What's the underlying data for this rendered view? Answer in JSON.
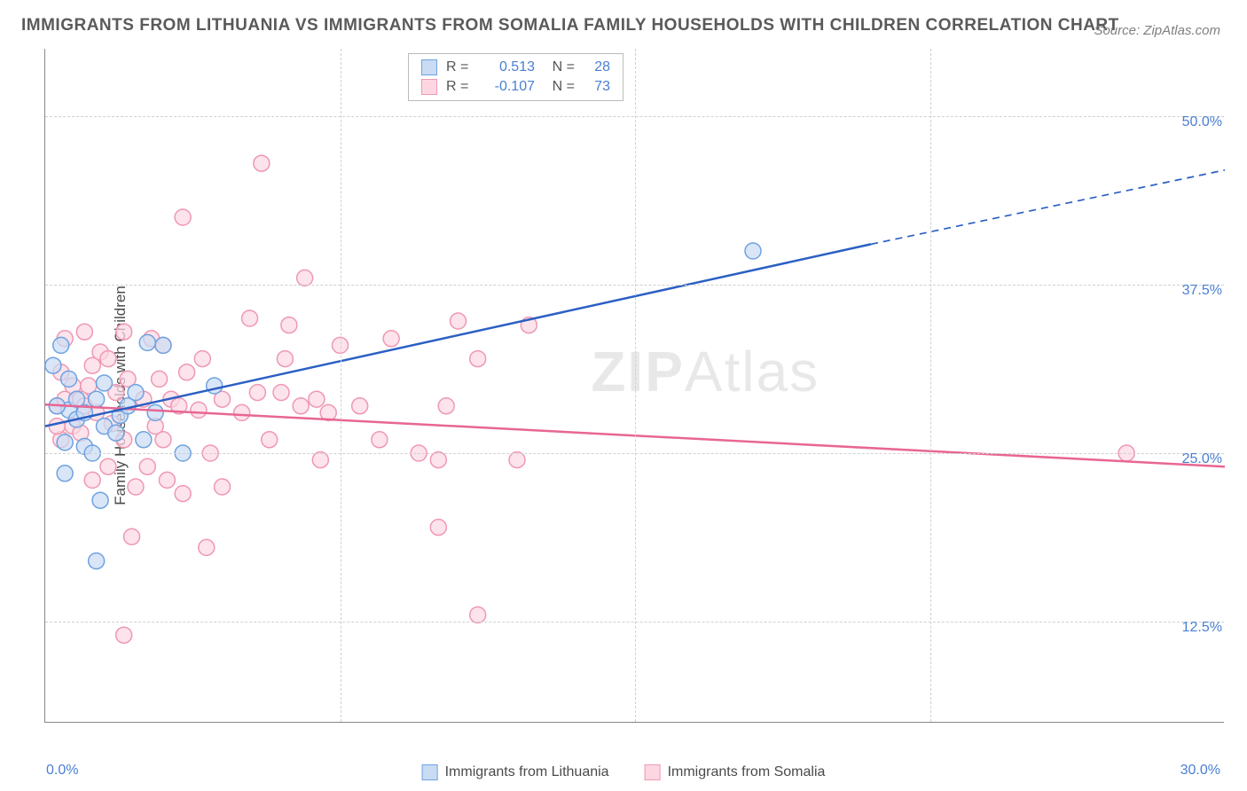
{
  "title": "IMMIGRANTS FROM LITHUANIA VS IMMIGRANTS FROM SOMALIA FAMILY HOUSEHOLDS WITH CHILDREN CORRELATION CHART",
  "source": "Source: ZipAtlas.com",
  "y_axis_title": "Family Households with Children",
  "watermark_bold": "ZIP",
  "watermark_rest": "Atlas",
  "chart": {
    "type": "scatter",
    "xlim": [
      0,
      30
    ],
    "ylim": [
      5,
      55
    ],
    "x_tick_labels": [
      "0.0%",
      "30.0%"
    ],
    "y_ticks": [
      12.5,
      25.0,
      37.5,
      50.0
    ],
    "y_tick_labels": [
      "12.5%",
      "25.0%",
      "37.5%",
      "50.0%"
    ],
    "v_grid_at_x": [
      7.5,
      15,
      22.5
    ],
    "background_color": "#ffffff",
    "grid_color": "#d0d0d0",
    "axis_color": "#888888",
    "tick_color": "#4a7fd4",
    "marker_radius": 9,
    "marker_stroke_width": 1.5,
    "line_width": 2.5,
    "series": [
      {
        "name": "Immigrants from Lithuania",
        "fill": "#c9dcf3",
        "stroke": "#6fa2e0",
        "line_color": "#2b5fc4",
        "r_value": "0.513",
        "n_value": "28",
        "trend": {
          "x1": 0,
          "y1": 27,
          "x2_solid": 21,
          "y2_solid": 40.5,
          "x2_dash": 30,
          "y2_dash": 46
        },
        "points": [
          [
            0.2,
            31.5
          ],
          [
            0.6,
            28.2
          ],
          [
            0.8,
            27.5
          ],
          [
            0.4,
            33.0
          ],
          [
            1.0,
            25.5
          ],
          [
            1.2,
            25.0
          ],
          [
            1.3,
            29.0
          ],
          [
            0.5,
            23.5
          ],
          [
            0.5,
            25.8
          ],
          [
            1.5,
            27.0
          ],
          [
            1.0,
            28.0
          ],
          [
            1.9,
            27.8
          ],
          [
            1.5,
            30.2
          ],
          [
            2.6,
            33.2
          ],
          [
            2.1,
            28.5
          ],
          [
            2.5,
            26.0
          ],
          [
            2.3,
            29.5
          ],
          [
            2.8,
            28.0
          ],
          [
            3.0,
            33.0
          ],
          [
            3.5,
            25.0
          ],
          [
            1.4,
            21.5
          ],
          [
            4.3,
            30.0
          ],
          [
            1.3,
            17.0
          ],
          [
            0.8,
            29.0
          ],
          [
            0.6,
            30.5
          ],
          [
            0.3,
            28.5
          ],
          [
            1.8,
            26.5
          ],
          [
            18.0,
            40.0
          ]
        ]
      },
      {
        "name": "Immigrants from Somalia",
        "fill": "#fcd7e2",
        "stroke": "#ef98b2",
        "line_color": "#e86693",
        "r_value": "-0.107",
        "n_value": "73",
        "trend": {
          "x1": 0,
          "y1": 28.6,
          "x2_solid": 30,
          "y2_solid": 24.0,
          "x2_dash": 30,
          "y2_dash": 24.0
        },
        "points": [
          [
            0.3,
            28.5
          ],
          [
            0.5,
            29.0
          ],
          [
            0.5,
            33.5
          ],
          [
            0.7,
            30.0
          ],
          [
            0.4,
            26.0
          ],
          [
            0.7,
            27.0
          ],
          [
            1.0,
            34.0
          ],
          [
            0.9,
            26.5
          ],
          [
            1.3,
            28.0
          ],
          [
            1.2,
            23.0
          ],
          [
            1.4,
            32.5
          ],
          [
            1.1,
            30.0
          ],
          [
            1.6,
            32.0
          ],
          [
            2.0,
            34.0
          ],
          [
            1.8,
            29.5
          ],
          [
            2.1,
            30.5
          ],
          [
            2.0,
            26.0
          ],
          [
            2.3,
            22.5
          ],
          [
            2.5,
            29.0
          ],
          [
            2.7,
            33.5
          ],
          [
            2.6,
            24.0
          ],
          [
            2.9,
            30.5
          ],
          [
            3.0,
            33.0
          ],
          [
            3.2,
            29.0
          ],
          [
            3.0,
            26.0
          ],
          [
            3.1,
            23.0
          ],
          [
            3.4,
            28.5
          ],
          [
            3.5,
            42.5
          ],
          [
            3.5,
            22.0
          ],
          [
            3.9,
            28.2
          ],
          [
            4.1,
            18.0
          ],
          [
            4.0,
            32.0
          ],
          [
            4.2,
            25.0
          ],
          [
            4.5,
            29.0
          ],
          [
            4.5,
            22.5
          ],
          [
            5.0,
            28.0
          ],
          [
            5.2,
            35.0
          ],
          [
            5.4,
            29.5
          ],
          [
            5.5,
            46.5
          ],
          [
            5.7,
            26.0
          ],
          [
            6.0,
            29.5
          ],
          [
            6.1,
            32.0
          ],
          [
            6.2,
            34.5
          ],
          [
            6.5,
            28.5
          ],
          [
            6.6,
            38.0
          ],
          [
            6.9,
            29.0
          ],
          [
            7.0,
            24.5
          ],
          [
            7.2,
            28.0
          ],
          [
            7.5,
            33.0
          ],
          [
            8.0,
            28.5
          ],
          [
            8.5,
            26.0
          ],
          [
            8.8,
            33.5
          ],
          [
            9.5,
            25.0
          ],
          [
            10.0,
            19.5
          ],
          [
            10.0,
            24.5
          ],
          [
            10.2,
            28.5
          ],
          [
            10.5,
            34.8
          ],
          [
            11.0,
            13.0
          ],
          [
            11.0,
            32.0
          ],
          [
            12.0,
            24.5
          ],
          [
            12.3,
            34.5
          ],
          [
            2.0,
            11.5
          ],
          [
            2.2,
            18.8
          ],
          [
            1.6,
            24.0
          ],
          [
            0.4,
            31.0
          ],
          [
            0.9,
            29.0
          ],
          [
            1.2,
            31.5
          ],
          [
            2.8,
            27.0
          ],
          [
            3.6,
            31.0
          ],
          [
            27.5,
            25.0
          ],
          [
            0.3,
            27.0
          ],
          [
            1.0,
            28.5
          ],
          [
            1.7,
            27.2
          ]
        ]
      }
    ]
  },
  "stats_labels": {
    "r": "R =",
    "n": "N ="
  }
}
